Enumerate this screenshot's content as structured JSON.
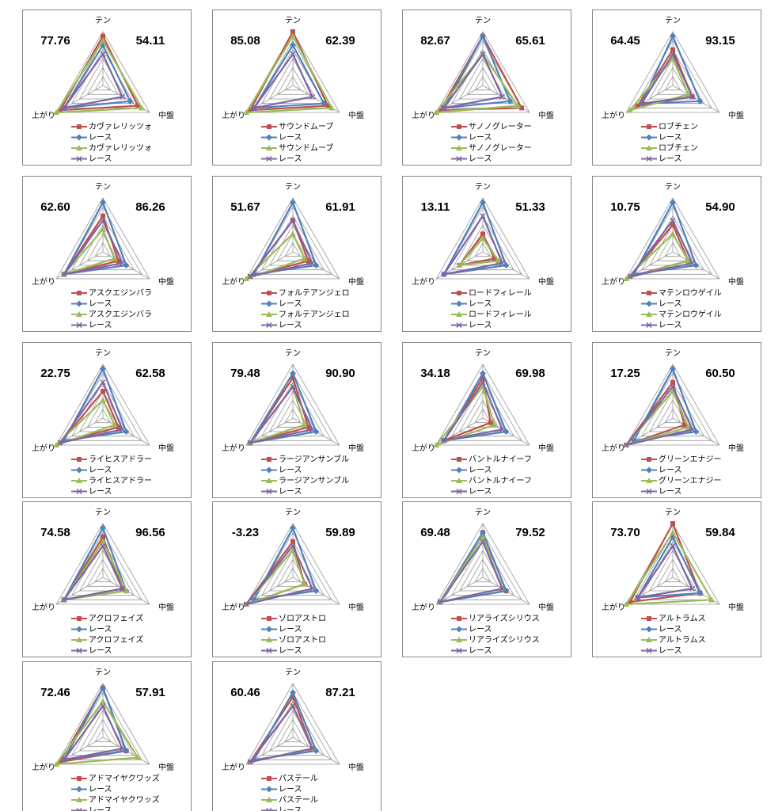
{
  "chart_data": [
    {
      "type": "radar",
      "axes": [
        "テン",
        "中盤",
        "上がり"
      ],
      "scores": [
        "77.76",
        "54.11"
      ],
      "rlim": [
        0,
        6
      ],
      "rticks": [
        1,
        2,
        3,
        4,
        5,
        6
      ],
      "series": [
        {
          "name": "カヴァレリッツォ",
          "color": "#c0504d",
          "marker": "square",
          "values": [
            5.5,
            4.5,
            5.5
          ]
        },
        {
          "name": "レース",
          "color": "#4f81bd",
          "marker": "diamond",
          "values": [
            4.5,
            3.5,
            5
          ]
        },
        {
          "name": "カヴァレリッツォ",
          "color": "#9bbb59",
          "marker": "triangle",
          "values": [
            5,
            5,
            6
          ]
        },
        {
          "name": "レース",
          "color": "#8064a2",
          "marker": "x",
          "values": [
            3.5,
            2.5,
            5
          ]
        }
      ]
    },
    {
      "type": "radar",
      "axes": [
        "テン",
        "中盤",
        "上がり"
      ],
      "scores": [
        "85.08",
        "62.39"
      ],
      "rlim": [
        0,
        6
      ],
      "rticks": [
        1,
        2,
        3,
        4,
        5,
        6
      ],
      "series": [
        {
          "name": "サウンドムーブ",
          "color": "#c0504d",
          "marker": "square",
          "values": [
            6,
            4.5,
            5.5
          ]
        },
        {
          "name": "レース",
          "color": "#4f81bd",
          "marker": "diamond",
          "values": [
            4.5,
            4,
            5
          ]
        },
        {
          "name": "サウンドムーブ",
          "color": "#9bbb59",
          "marker": "triangle",
          "values": [
            5.5,
            5,
            6
          ]
        },
        {
          "name": "レース",
          "color": "#8064a2",
          "marker": "x",
          "values": [
            3.5,
            2.5,
            5
          ]
        }
      ]
    },
    {
      "type": "radar",
      "axes": [
        "テン",
        "中盤",
        "上がり"
      ],
      "scores": [
        "82.67",
        "65.61"
      ],
      "rlim": [
        0,
        6
      ],
      "rticks": [
        1,
        2,
        3,
        4,
        5,
        6
      ],
      "series": [
        {
          "name": "サノノグレーター",
          "color": "#c0504d",
          "marker": "square",
          "values": [
            5.5,
            5,
            5.5
          ]
        },
        {
          "name": "レース",
          "color": "#4f81bd",
          "marker": "diamond",
          "values": [
            5.5,
            3.5,
            5
          ]
        },
        {
          "name": "サノノグレーター",
          "color": "#9bbb59",
          "marker": "triangle",
          "values": [
            3.5,
            4.5,
            6
          ]
        },
        {
          "name": "レース",
          "color": "#8064a2",
          "marker": "x",
          "values": [
            3.5,
            2.5,
            5
          ]
        }
      ]
    },
    {
      "type": "radar",
      "axes": [
        "テン",
        "中盤",
        "上がり"
      ],
      "scores": [
        "64.45",
        "93.15"
      ],
      "rlim": [
        0,
        6
      ],
      "rticks": [
        1,
        2,
        3,
        4,
        5,
        6
      ],
      "series": [
        {
          "name": "ロブチェン",
          "color": "#c0504d",
          "marker": "square",
          "values": [
            4,
            2.5,
            4.5
          ]
        },
        {
          "name": "レース",
          "color": "#4f81bd",
          "marker": "diamond",
          "values": [
            5.5,
            3.5,
            4
          ]
        },
        {
          "name": "ロブチェン",
          "color": "#9bbb59",
          "marker": "triangle",
          "values": [
            3,
            2,
            5.5
          ]
        },
        {
          "name": "レース",
          "color": "#8064a2",
          "marker": "x",
          "values": [
            3.5,
            2.5,
            4
          ]
        }
      ]
    },
    {
      "type": "radar",
      "axes": [
        "テン",
        "中盤",
        "上がり"
      ],
      "scores": [
        "62.60",
        "86.26"
      ],
      "rlim": [
        0,
        6
      ],
      "rticks": [
        1,
        2,
        3,
        4,
        5,
        6
      ],
      "series": [
        {
          "name": "アスクエジンバラ",
          "color": "#c0504d",
          "marker": "square",
          "values": [
            4,
            2,
            5
          ]
        },
        {
          "name": "レース",
          "color": "#4f81bd",
          "marker": "diamond",
          "values": [
            5.5,
            3,
            5
          ]
        },
        {
          "name": "アスクエジンバラ",
          "color": "#9bbb59",
          "marker": "triangle",
          "values": [
            2.5,
            1.5,
            5
          ]
        },
        {
          "name": "レース",
          "color": "#8064a2",
          "marker": "x",
          "values": [
            3.5,
            2.5,
            5
          ]
        }
      ]
    },
    {
      "type": "radar",
      "axes": [
        "テン",
        "中盤",
        "上がり"
      ],
      "scores": [
        "51.67",
        "61.91"
      ],
      "rlim": [
        0,
        6
      ],
      "rticks": [
        1,
        2,
        3,
        4,
        5,
        6
      ],
      "series": [
        {
          "name": "フォルテアンジェロ",
          "color": "#c0504d",
          "marker": "square",
          "values": [
            3.5,
            2,
            5.5
          ]
        },
        {
          "name": "レース",
          "color": "#4f81bd",
          "marker": "diamond",
          "values": [
            5.5,
            3,
            5
          ]
        },
        {
          "name": "フォルテアンジェロ",
          "color": "#9bbb59",
          "marker": "triangle",
          "values": [
            2,
            1.5,
            6
          ]
        },
        {
          "name": "レース",
          "color": "#8064a2",
          "marker": "x",
          "values": [
            3.5,
            2.5,
            5.5
          ]
        }
      ]
    },
    {
      "type": "radar",
      "axes": [
        "テン",
        "中盤",
        "上がり"
      ],
      "scores": [
        "13.11",
        "51.33"
      ],
      "rlim": [
        0,
        6
      ],
      "rticks": [
        1,
        2,
        3,
        4,
        5,
        6
      ],
      "series": [
        {
          "name": "ロードフィレール",
          "color": "#c0504d",
          "marker": "square",
          "values": [
            2,
            1.5,
            3
          ]
        },
        {
          "name": "レース",
          "color": "#4f81bd",
          "marker": "diamond",
          "values": [
            5.5,
            3,
            5
          ]
        },
        {
          "name": "ロードフィレール",
          "color": "#9bbb59",
          "marker": "triangle",
          "values": [
            1.5,
            2,
            3
          ]
        },
        {
          "name": "レース",
          "color": "#8064a2",
          "marker": "x",
          "values": [
            4,
            2.5,
            5
          ]
        }
      ]
    },
    {
      "type": "radar",
      "axes": [
        "テン",
        "中盤",
        "上がり"
      ],
      "scores": [
        "10.75",
        "54.90"
      ],
      "rlim": [
        0,
        6
      ],
      "rticks": [
        1,
        2,
        3,
        4,
        5,
        6
      ],
      "series": [
        {
          "name": "マテンロウゲイル",
          "color": "#c0504d",
          "marker": "square",
          "values": [
            3,
            2,
            5.5
          ]
        },
        {
          "name": "レース",
          "color": "#4f81bd",
          "marker": "diamond",
          "values": [
            5.5,
            3,
            5
          ]
        },
        {
          "name": "マテンロウゲイル",
          "color": "#9bbb59",
          "marker": "triangle",
          "values": [
            2,
            2,
            6
          ]
        },
        {
          "name": "レース",
          "color": "#8064a2",
          "marker": "x",
          "values": [
            3.5,
            2.5,
            5.5
          ]
        }
      ]
    },
    {
      "type": "radar",
      "axes": [
        "テン",
        "中盤",
        "上がり"
      ],
      "scores": [
        "22.75",
        "62.58"
      ],
      "rlim": [
        0,
        6
      ],
      "rticks": [
        1,
        2,
        3,
        4,
        5,
        6
      ],
      "series": [
        {
          "name": "ライヒスアドラー",
          "color": "#c0504d",
          "marker": "square",
          "values": [
            3,
            2,
            5.5
          ]
        },
        {
          "name": "レース",
          "color": "#4f81bd",
          "marker": "diamond",
          "values": [
            5.5,
            3,
            5
          ]
        },
        {
          "name": "ライヒスアドラー",
          "color": "#9bbb59",
          "marker": "triangle",
          "values": [
            2,
            1.5,
            6
          ]
        },
        {
          "name": "レース",
          "color": "#8064a2",
          "marker": "x",
          "values": [
            4,
            2.5,
            5.5
          ]
        }
      ]
    },
    {
      "type": "radar",
      "axes": [
        "テン",
        "中盤",
        "上がり"
      ],
      "scores": [
        "79.48",
        "90.90"
      ],
      "rlim": [
        0,
        6
      ],
      "rticks": [
        1,
        2,
        3,
        4,
        5,
        6
      ],
      "series": [
        {
          "name": "ラージアンサンブル",
          "color": "#c0504d",
          "marker": "square",
          "values": [
            4.5,
            2,
            5.5
          ]
        },
        {
          "name": "レース",
          "color": "#4f81bd",
          "marker": "diamond",
          "values": [
            5,
            3,
            5.5
          ]
        },
        {
          "name": "ラージアンサンブル",
          "color": "#9bbb59",
          "marker": "triangle",
          "values": [
            3.5,
            1.5,
            5.5
          ]
        },
        {
          "name": "レース",
          "color": "#8064a2",
          "marker": "x",
          "values": [
            3.5,
            2.5,
            5.5
          ]
        }
      ]
    },
    {
      "type": "radar",
      "axes": [
        "テン",
        "中盤",
        "上がり"
      ],
      "scores": [
        "34.18",
        "69.98"
      ],
      "rlim": [
        0,
        6
      ],
      "rticks": [
        1,
        2,
        3,
        4,
        5,
        6
      ],
      "series": [
        {
          "name": "バントルナイーフ",
          "color": "#c0504d",
          "marker": "square",
          "values": [
            4.5,
            1,
            5
          ]
        },
        {
          "name": "レース",
          "color": "#4f81bd",
          "marker": "diamond",
          "values": [
            5,
            3,
            5
          ]
        },
        {
          "name": "バントルナイーフ",
          "color": "#9bbb59",
          "marker": "triangle",
          "values": [
            3.5,
            1.5,
            6
          ]
        },
        {
          "name": "レース",
          "color": "#8064a2",
          "marker": "x",
          "values": [
            4,
            2.5,
            5
          ]
        }
      ]
    },
    {
      "type": "radar",
      "axes": [
        "テン",
        "中盤",
        "上がり"
      ],
      "scores": [
        "17.25",
        "60.50"
      ],
      "rlim": [
        0,
        6
      ],
      "rticks": [
        1,
        2,
        3,
        4,
        5,
        6
      ],
      "series": [
        {
          "name": "グリーンエナジー",
          "color": "#c0504d",
          "marker": "square",
          "values": [
            4,
            1.5,
            6
          ]
        },
        {
          "name": "レース",
          "color": "#4f81bd",
          "marker": "diamond",
          "values": [
            5.5,
            3,
            5
          ]
        },
        {
          "name": "グリーンエナジー",
          "color": "#9bbb59",
          "marker": "triangle",
          "values": [
            3,
            2,
            6
          ]
        },
        {
          "name": "レース",
          "color": "#8064a2",
          "marker": "x",
          "values": [
            3.5,
            2.5,
            6
          ]
        }
      ]
    },
    {
      "type": "radar",
      "axes": [
        "テン",
        "中盤",
        "上がり"
      ],
      "scores": [
        "74.58",
        "96.56"
      ],
      "rlim": [
        0,
        6
      ],
      "rticks": [
        1,
        2,
        3,
        4,
        5,
        6
      ],
      "series": [
        {
          "name": "アクロフェイズ",
          "color": "#c0504d",
          "marker": "square",
          "values": [
            4.5,
            2.5,
            5
          ]
        },
        {
          "name": "レース",
          "color": "#4f81bd",
          "marker": "diamond",
          "values": [
            5.5,
            3,
            5
          ]
        },
        {
          "name": "アクロフェイズ",
          "color": "#9bbb59",
          "marker": "triangle",
          "values": [
            4,
            3,
            5
          ]
        },
        {
          "name": "レース",
          "color": "#8064a2",
          "marker": "x",
          "values": [
            3.5,
            2.5,
            5
          ]
        }
      ]
    },
    {
      "type": "radar",
      "axes": [
        "テン",
        "中盤",
        "上がり"
      ],
      "scores": [
        "-3.23",
        "59.89"
      ],
      "rlim": [
        0,
        6
      ],
      "rticks": [
        1,
        2,
        3,
        4,
        5,
        6
      ],
      "series": [
        {
          "name": "ゾロアストロ",
          "color": "#c0504d",
          "marker": "square",
          "values": [
            4,
            1.5,
            6
          ]
        },
        {
          "name": "レース",
          "color": "#4f81bd",
          "marker": "diamond",
          "values": [
            5.5,
            3,
            5
          ]
        },
        {
          "name": "ゾロアストロ",
          "color": "#9bbb59",
          "marker": "triangle",
          "values": [
            3,
            1.5,
            6
          ]
        },
        {
          "name": "レース",
          "color": "#8064a2",
          "marker": "x",
          "values": [
            3.5,
            2.5,
            6
          ]
        }
      ]
    },
    {
      "type": "radar",
      "axes": [
        "テン",
        "中盤",
        "上がり"
      ],
      "scores": [
        "69.48",
        "79.52"
      ],
      "rlim": [
        0,
        6
      ],
      "rticks": [
        1,
        2,
        3,
        4,
        5,
        6
      ],
      "series": [
        {
          "name": "リアライズシリウス",
          "color": "#c0504d",
          "marker": "square",
          "values": [
            5,
            3,
            5.5
          ]
        },
        {
          "name": "レース",
          "color": "#4f81bd",
          "marker": "diamond",
          "values": [
            5,
            3,
            5.5
          ]
        },
        {
          "name": "リアライズシリウス",
          "color": "#9bbb59",
          "marker": "triangle",
          "values": [
            4.5,
            2.5,
            5.5
          ]
        },
        {
          "name": "レース",
          "color": "#8064a2",
          "marker": "x",
          "values": [
            4,
            2.5,
            5.5
          ]
        }
      ]
    },
    {
      "type": "radar",
      "axes": [
        "テン",
        "中盤",
        "上がり"
      ],
      "scores": [
        "73.70",
        "59.84"
      ],
      "rlim": [
        0,
        6
      ],
      "rticks": [
        1,
        2,
        3,
        4,
        5,
        6
      ],
      "series": [
        {
          "name": "アルトラムス",
          "color": "#c0504d",
          "marker": "square",
          "values": [
            6,
            3.5,
            5.5
          ]
        },
        {
          "name": "レース",
          "color": "#4f81bd",
          "marker": "diamond",
          "values": [
            4.5,
            3.5,
            4.5
          ]
        },
        {
          "name": "アルトラムス",
          "color": "#9bbb59",
          "marker": "triangle",
          "values": [
            5,
            5,
            6
          ]
        },
        {
          "name": "レース",
          "color": "#8064a2",
          "marker": "x",
          "values": [
            3.5,
            2.5,
            4.5
          ]
        }
      ]
    },
    {
      "type": "radar",
      "axes": [
        "テン",
        "中盤",
        "上がり"
      ],
      "scores": [
        "72.46",
        "57.91"
      ],
      "rlim": [
        0,
        6
      ],
      "rticks": [
        1,
        2,
        3,
        4,
        5,
        6
      ],
      "series": [
        {
          "name": "アドマイヤクワッズ",
          "color": "#c0504d",
          "marker": "square",
          "values": [
            5.5,
            3,
            5.5
          ]
        },
        {
          "name": "レース",
          "color": "#4f81bd",
          "marker": "diamond",
          "values": [
            5.5,
            3,
            5
          ]
        },
        {
          "name": "アドマイヤクワッズ",
          "color": "#9bbb59",
          "marker": "triangle",
          "values": [
            4,
            4.5,
            6
          ]
        },
        {
          "name": "レース",
          "color": "#8064a2",
          "marker": "x",
          "values": [
            3.5,
            2.5,
            5
          ]
        }
      ]
    },
    {
      "type": "radar",
      "axes": [
        "テン",
        "中盤",
        "上がり"
      ],
      "scores": [
        "60.46",
        "87.21"
      ],
      "rlim": [
        0,
        6
      ],
      "rticks": [
        1,
        2,
        3,
        4,
        5,
        6
      ],
      "series": [
        {
          "name": "パステール",
          "color": "#c0504d",
          "marker": "square",
          "values": [
            4.5,
            2.5,
            5.5
          ]
        },
        {
          "name": "レース",
          "color": "#4f81bd",
          "marker": "diamond",
          "values": [
            5,
            3,
            5
          ]
        },
        {
          "name": "パステール",
          "color": "#9bbb59",
          "marker": "triangle",
          "values": [
            3.5,
            2.5,
            5.5
          ]
        },
        {
          "name": "レース",
          "color": "#8064a2",
          "marker": "x",
          "values": [
            3.5,
            2.5,
            5.5
          ]
        }
      ]
    }
  ]
}
